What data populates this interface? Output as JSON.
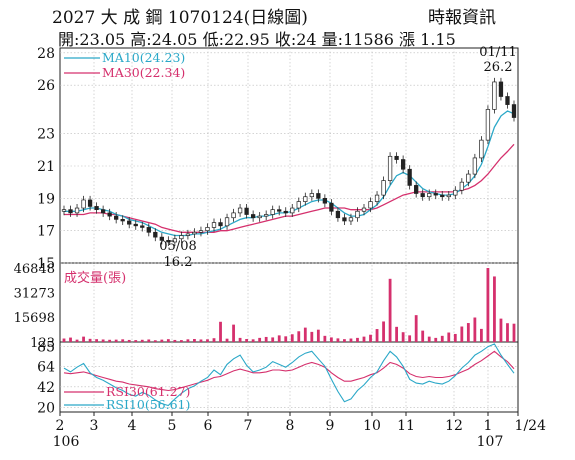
{
  "header": {
    "title": "2027  大 成 鋼 1070124(日線圖)",
    "source": "時報資訊",
    "quote": "開:23.05 高:24.05 低:22.95 收:24 量:11586 漲 1.15"
  },
  "chart_data": [
    {
      "type": "candlestick",
      "title": "",
      "y_ticks": [
        15,
        17,
        19,
        21,
        23,
        26,
        28
      ],
      "ylim": [
        15,
        28.3
      ],
      "x_month_labels": [
        "2",
        "3",
        "4",
        "5",
        "6",
        "7",
        "8",
        "9",
        "10",
        "11",
        "12",
        "1",
        "1/24"
      ],
      "x_year_labels": [
        "106",
        "107"
      ],
      "legend": [
        {
          "name": "MA10(24.23)",
          "color": "#2ba8c8"
        },
        {
          "name": "MA30(22.34)",
          "color": "#d5306d"
        }
      ],
      "annotations": [
        {
          "text": "05/08",
          "date": "05/08"
        },
        {
          "text": "16.2",
          "value": 16.2
        },
        {
          "text": "01/11",
          "date": "01/11"
        },
        {
          "text": "26.2",
          "value": 26.2
        }
      ],
      "close_series_approx": [
        18.3,
        18.1,
        18.4,
        18.9,
        18.5,
        18.3,
        18.1,
        17.9,
        17.7,
        17.6,
        17.4,
        17.3,
        17.2,
        16.9,
        16.6,
        16.4,
        16.3,
        16.5,
        16.7,
        16.8,
        16.9,
        17.0,
        17.2,
        17.5,
        17.3,
        17.8,
        18.1,
        18.4,
        18.0,
        17.8,
        17.9,
        18.0,
        18.3,
        18.2,
        18.1,
        18.4,
        18.8,
        19.1,
        19.3,
        19.0,
        18.7,
        18.2,
        17.8,
        17.6,
        17.8,
        18.2,
        18.4,
        18.8,
        19.2,
        20.1,
        21.6,
        21.4,
        20.8,
        19.8,
        19.3,
        19.1,
        19.3,
        19.2,
        19.1,
        19.2,
        19.5,
        20.0,
        20.5,
        21.5,
        22.6,
        24.5,
        26.2,
        25.3,
        24.8,
        24.0
      ],
      "ma10_series_approx": [
        18.2,
        18.2,
        18.2,
        18.3,
        18.4,
        18.4,
        18.3,
        18.2,
        18.0,
        17.9,
        17.7,
        17.6,
        17.5,
        17.3,
        17.1,
        16.9,
        16.8,
        16.7,
        16.7,
        16.7,
        16.8,
        16.8,
        16.9,
        17.0,
        17.1,
        17.3,
        17.5,
        17.7,
        17.8,
        17.8,
        17.9,
        17.9,
        18.0,
        18.1,
        18.1,
        18.2,
        18.4,
        18.6,
        18.8,
        18.9,
        18.9,
        18.7,
        18.4,
        18.1,
        17.9,
        17.9,
        18.0,
        18.3,
        18.6,
        19.1,
        19.8,
        20.4,
        20.6,
        20.4,
        20.0,
        19.6,
        19.4,
        19.3,
        19.2,
        19.2,
        19.3,
        19.6,
        19.9,
        20.4,
        21.1,
        22.2,
        23.4,
        24.1,
        24.4,
        24.23
      ],
      "ma30_series_approx": [
        18.0,
        18.0,
        18.0,
        18.0,
        18.1,
        18.1,
        18.1,
        18.0,
        18.0,
        17.9,
        17.8,
        17.7,
        17.6,
        17.5,
        17.4,
        17.2,
        17.1,
        17.0,
        16.9,
        16.9,
        16.9,
        16.9,
        16.9,
        16.9,
        17.0,
        17.0,
        17.1,
        17.2,
        17.3,
        17.4,
        17.5,
        17.6,
        17.7,
        17.8,
        17.9,
        17.9,
        18.0,
        18.1,
        18.2,
        18.3,
        18.4,
        18.4,
        18.4,
        18.4,
        18.3,
        18.3,
        18.3,
        18.3,
        18.4,
        18.6,
        18.8,
        19.0,
        19.2,
        19.3,
        19.4,
        19.4,
        19.4,
        19.4,
        19.4,
        19.4,
        19.4,
        19.5,
        19.6,
        19.8,
        20.1,
        20.5,
        21.0,
        21.5,
        21.9,
        22.34
      ]
    },
    {
      "type": "bar",
      "title": "成交量(張)",
      "y_ticks": [
        123,
        15698,
        31273,
        46848
      ],
      "ylim": [
        0,
        46848
      ],
      "values_approx": [
        2200,
        2800,
        1500,
        3400,
        2000,
        1800,
        1600,
        1400,
        1500,
        1700,
        1300,
        1200,
        1400,
        1600,
        1100,
        1500,
        1800,
        1300,
        1200,
        1700,
        1900,
        1600,
        1700,
        2400,
        12800,
        2100,
        11000,
        2600,
        1900,
        1700,
        2600,
        3200,
        2900,
        4200,
        3600,
        4900,
        6800,
        9100,
        6400,
        7800,
        3900,
        2900,
        2300,
        1800,
        2200,
        2600,
        3400,
        4600,
        8200,
        13000,
        40000,
        9600,
        6200,
        4200,
        17000,
        7200,
        3400,
        2600,
        3900,
        6000,
        5100,
        9800,
        12000,
        15500,
        8300,
        46848,
        41500,
        14800,
        11900,
        11586
      ]
    },
    {
      "type": "line",
      "title": "",
      "y_ticks": [
        20,
        42,
        64,
        85
      ],
      "ylim": [
        15,
        90
      ],
      "legend": [
        {
          "name": "RSI30(61.27)",
          "color": "#d5306d"
        },
        {
          "name": "RSI10(56.61)",
          "color": "#2ba8c8"
        }
      ],
      "series": [
        {
          "name": "RSI30",
          "values_approx": [
            57,
            56,
            57,
            58,
            56,
            54,
            52,
            50,
            48,
            47,
            45,
            44,
            43,
            42,
            40,
            39,
            38,
            39,
            41,
            43,
            45,
            47,
            49,
            52,
            53,
            56,
            59,
            61,
            59,
            57,
            57,
            58,
            60,
            60,
            59,
            60,
            63,
            66,
            68,
            66,
            63,
            57,
            52,
            48,
            48,
            50,
            52,
            55,
            57,
            62,
            68,
            66,
            62,
            56,
            53,
            52,
            53,
            52,
            52,
            53,
            55,
            58,
            61,
            66,
            70,
            75,
            80,
            74,
            69,
            61.27
          ]
        },
        {
          "name": "RSI10",
          "values_approx": [
            62,
            58,
            63,
            67,
            57,
            52,
            49,
            45,
            41,
            38,
            34,
            32,
            36,
            33,
            28,
            24,
            22,
            29,
            35,
            40,
            43,
            48,
            52,
            60,
            55,
            66,
            72,
            76,
            65,
            58,
            60,
            63,
            69,
            66,
            63,
            68,
            74,
            78,
            80,
            72,
            64,
            50,
            37,
            26,
            29,
            38,
            44,
            52,
            58,
            70,
            80,
            74,
            64,
            50,
            46,
            45,
            48,
            46,
            45,
            48,
            54,
            62,
            68,
            76,
            80,
            85,
            88,
            76,
            66,
            56.61
          ]
        }
      ]
    }
  ]
}
